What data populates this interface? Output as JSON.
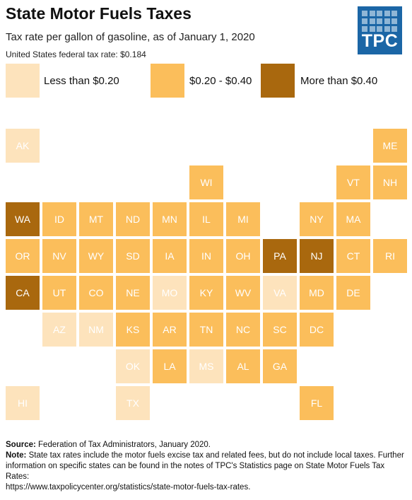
{
  "header": {
    "title": "State Motor Fuels Taxes",
    "subtitle": "Tax rate per gallon of gasoline, as of January 1, 2020",
    "federal_rate": "United States federal tax rate: $0.184",
    "logo_text": "TPC"
  },
  "legend": [
    {
      "label": "Less than $0.20",
      "category": "low",
      "color": "#fde3bc"
    },
    {
      "label": "$0.20 - $0.40",
      "category": "mid",
      "color": "#fbbe5b"
    },
    {
      "label": "More than $0.40",
      "category": "high",
      "color": "#a9680e"
    }
  ],
  "states": [
    {
      "abbr": "AK",
      "row": 0,
      "col": 0,
      "category": "low"
    },
    {
      "abbr": "ME",
      "row": 0,
      "col": 10,
      "category": "mid"
    },
    {
      "abbr": "WI",
      "row": 1,
      "col": 5,
      "category": "mid"
    },
    {
      "abbr": "VT",
      "row": 1,
      "col": 9,
      "category": "mid"
    },
    {
      "abbr": "NH",
      "row": 1,
      "col": 10,
      "category": "mid"
    },
    {
      "abbr": "WA",
      "row": 2,
      "col": 0,
      "category": "high"
    },
    {
      "abbr": "ID",
      "row": 2,
      "col": 1,
      "category": "mid"
    },
    {
      "abbr": "MT",
      "row": 2,
      "col": 2,
      "category": "mid"
    },
    {
      "abbr": "ND",
      "row": 2,
      "col": 3,
      "category": "mid"
    },
    {
      "abbr": "MN",
      "row": 2,
      "col": 4,
      "category": "mid"
    },
    {
      "abbr": "IL",
      "row": 2,
      "col": 5,
      "category": "mid"
    },
    {
      "abbr": "MI",
      "row": 2,
      "col": 6,
      "category": "mid"
    },
    {
      "abbr": "NY",
      "row": 2,
      "col": 8,
      "category": "mid"
    },
    {
      "abbr": "MA",
      "row": 2,
      "col": 9,
      "category": "mid"
    },
    {
      "abbr": "OR",
      "row": 3,
      "col": 0,
      "category": "mid"
    },
    {
      "abbr": "NV",
      "row": 3,
      "col": 1,
      "category": "mid"
    },
    {
      "abbr": "WY",
      "row": 3,
      "col": 2,
      "category": "mid"
    },
    {
      "abbr": "SD",
      "row": 3,
      "col": 3,
      "category": "mid"
    },
    {
      "abbr": "IA",
      "row": 3,
      "col": 4,
      "category": "mid"
    },
    {
      "abbr": "IN",
      "row": 3,
      "col": 5,
      "category": "mid"
    },
    {
      "abbr": "OH",
      "row": 3,
      "col": 6,
      "category": "mid"
    },
    {
      "abbr": "PA",
      "row": 3,
      "col": 7,
      "category": "high"
    },
    {
      "abbr": "NJ",
      "row": 3,
      "col": 8,
      "category": "high"
    },
    {
      "abbr": "CT",
      "row": 3,
      "col": 9,
      "category": "mid"
    },
    {
      "abbr": "RI",
      "row": 3,
      "col": 10,
      "category": "mid"
    },
    {
      "abbr": "CA",
      "row": 4,
      "col": 0,
      "category": "high"
    },
    {
      "abbr": "UT",
      "row": 4,
      "col": 1,
      "category": "mid"
    },
    {
      "abbr": "CO",
      "row": 4,
      "col": 2,
      "category": "mid"
    },
    {
      "abbr": "NE",
      "row": 4,
      "col": 3,
      "category": "mid"
    },
    {
      "abbr": "MO",
      "row": 4,
      "col": 4,
      "category": "low"
    },
    {
      "abbr": "KY",
      "row": 4,
      "col": 5,
      "category": "mid"
    },
    {
      "abbr": "WV",
      "row": 4,
      "col": 6,
      "category": "mid"
    },
    {
      "abbr": "VA",
      "row": 4,
      "col": 7,
      "category": "low"
    },
    {
      "abbr": "MD",
      "row": 4,
      "col": 8,
      "category": "mid"
    },
    {
      "abbr": "DE",
      "row": 4,
      "col": 9,
      "category": "mid"
    },
    {
      "abbr": "AZ",
      "row": 5,
      "col": 1,
      "category": "low"
    },
    {
      "abbr": "NM",
      "row": 5,
      "col": 2,
      "category": "low"
    },
    {
      "abbr": "KS",
      "row": 5,
      "col": 3,
      "category": "mid"
    },
    {
      "abbr": "AR",
      "row": 5,
      "col": 4,
      "category": "mid"
    },
    {
      "abbr": "TN",
      "row": 5,
      "col": 5,
      "category": "mid"
    },
    {
      "abbr": "NC",
      "row": 5,
      "col": 6,
      "category": "mid"
    },
    {
      "abbr": "SC",
      "row": 5,
      "col": 7,
      "category": "mid"
    },
    {
      "abbr": "DC",
      "row": 5,
      "col": 8,
      "category": "mid"
    },
    {
      "abbr": "OK",
      "row": 6,
      "col": 3,
      "category": "low"
    },
    {
      "abbr": "LA",
      "row": 6,
      "col": 4,
      "category": "mid"
    },
    {
      "abbr": "MS",
      "row": 6,
      "col": 5,
      "category": "low"
    },
    {
      "abbr": "AL",
      "row": 6,
      "col": 6,
      "category": "mid"
    },
    {
      "abbr": "GA",
      "row": 6,
      "col": 7,
      "category": "mid"
    },
    {
      "abbr": "HI",
      "row": 7,
      "col": 0,
      "category": "low"
    },
    {
      "abbr": "TX",
      "row": 7,
      "col": 3,
      "category": "low"
    },
    {
      "abbr": "FL",
      "row": 7,
      "col": 8,
      "category": "mid"
    }
  ],
  "footer": {
    "source_label": "Source:",
    "source_text": " Federation of Tax Administrators, January 2020.",
    "note_label": "Note:",
    "note_text": " State tax rates include the motor fuels excise tax and related fees, but do not include local taxes. Further information on specific states can be found in the notes of TPC's Statistics page on State Motor Fuels Tax Rates:",
    "url": "https://www.taxpolicycenter.org/statistics/state-motor-fuels-tax-rates."
  }
}
